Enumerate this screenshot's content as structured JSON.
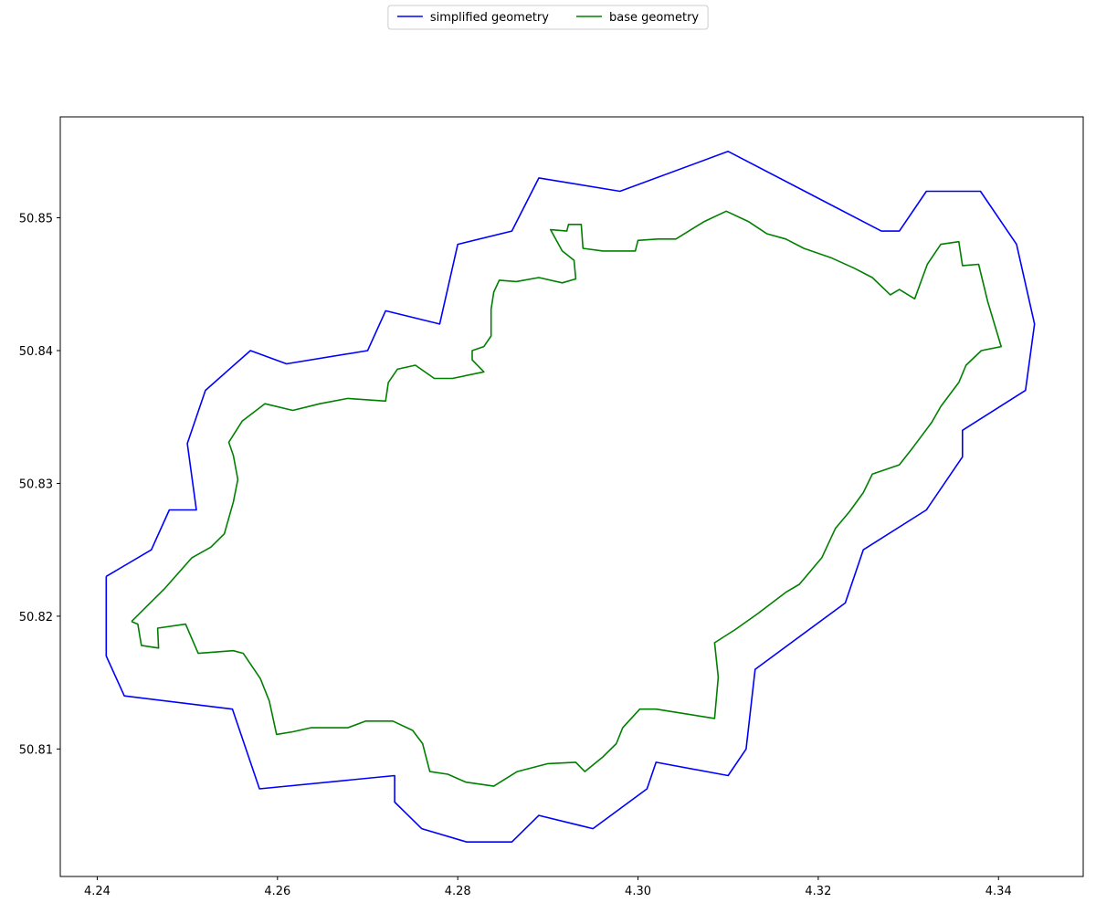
{
  "chart_data": {
    "type": "line",
    "legend": "upper center",
    "xlim": [
      4.2359,
      4.3494
    ],
    "ylim": [
      50.8004,
      50.8576
    ],
    "xticks": [
      4.24,
      4.26,
      4.28,
      {
        "value": 4.3,
        "label": "4.30"
      },
      4.32,
      4.34
    ],
    "yticks": [
      50.81,
      50.82,
      50.83,
      50.84,
      50.85
    ],
    "series": [
      {
        "name": "simplified geometry",
        "color": "#0000ff",
        "x": [
          4.241,
          4.246,
          4.248,
          4.251,
          4.25,
          4.252,
          4.257,
          4.261,
          4.27,
          4.272,
          4.278,
          4.28,
          4.286,
          4.289,
          4.298,
          4.31,
          4.327,
          4.329,
          4.332,
          4.338,
          4.342,
          4.344,
          4.343,
          4.336,
          4.336,
          4.332,
          4.325,
          4.323,
          4.313,
          4.312,
          4.31,
          4.302,
          4.301,
          4.295,
          4.289,
          4.286,
          4.281,
          4.276,
          4.273,
          4.273,
          4.258,
          4.255,
          4.243,
          4.241,
          4.241
        ],
        "values": [
          50.823,
          50.825,
          50.828,
          50.828,
          50.833,
          50.837,
          50.84,
          50.839,
          50.84,
          50.843,
          50.842,
          50.848,
          50.849,
          50.853,
          50.852,
          50.855,
          50.849,
          50.849,
          50.852,
          50.852,
          50.848,
          50.842,
          50.837,
          50.834,
          50.832,
          50.828,
          50.825,
          50.821,
          50.816,
          50.81,
          50.808,
          50.809,
          50.807,
          50.804,
          50.805,
          50.803,
          50.803,
          50.804,
          50.806,
          50.808,
          50.807,
          50.813,
          50.814,
          50.817,
          50.823
        ]
      },
      {
        "name": "base geometry",
        "color": "#008000",
        "x": [
          4.2438,
          4.2445,
          4.2449,
          4.2468,
          4.2467,
          4.2498,
          4.2512,
          4.2551,
          4.2562,
          4.2581,
          4.2591,
          4.2599,
          4.2617,
          4.2637,
          4.2678,
          4.2698,
          4.2728,
          4.275,
          4.2761,
          4.2769,
          4.2789,
          4.2809,
          4.284,
          4.2866,
          4.29,
          4.2931,
          4.2941,
          4.2961,
          4.2976,
          4.2983,
          4.3002,
          4.302,
          4.3085,
          4.3089,
          4.3085,
          4.3108,
          4.3133,
          4.3164,
          4.3179,
          4.3204,
          4.3219,
          4.3235,
          4.325,
          4.326,
          4.329,
          4.3305,
          4.3326,
          4.3336,
          4.3356,
          4.3364,
          4.3381,
          4.3403,
          4.3388,
          4.3378,
          4.336,
          4.3356,
          4.3336,
          4.3321,
          4.3307,
          4.329,
          4.328,
          4.326,
          4.324,
          4.3214,
          4.3184,
          4.3164,
          4.3143,
          4.3123,
          4.3098,
          4.3073,
          4.3042,
          4.3022,
          4.3,
          4.2997,
          4.2961,
          4.2939,
          4.2937,
          4.2923,
          4.2921,
          4.2903,
          4.2916,
          4.2929,
          4.2931,
          4.2916,
          4.289,
          4.2865,
          4.2846,
          4.284,
          4.2837,
          4.2837,
          4.2829,
          4.2816,
          4.2816,
          4.2829,
          4.2794,
          4.2774,
          4.2753,
          4.2733,
          4.2723,
          4.272,
          4.2678,
          4.2647,
          4.2617,
          4.2586,
          4.2561,
          4.2546,
          4.2551,
          4.2556,
          4.2551,
          4.2541,
          4.2526,
          4.2505,
          4.2475,
          4.2438
        ],
        "values": [
          50.8196,
          50.8194,
          50.8178,
          50.8176,
          50.8191,
          50.8194,
          50.8172,
          50.8174,
          50.8172,
          50.8153,
          50.8136,
          50.8111,
          50.8113,
          50.8116,
          50.8116,
          50.8121,
          50.8121,
          50.8114,
          50.8104,
          50.8083,
          50.8081,
          50.8075,
          50.8072,
          50.8083,
          50.8089,
          50.809,
          50.8083,
          50.8094,
          50.8104,
          50.8116,
          50.813,
          50.813,
          50.8123,
          50.8154,
          50.818,
          50.819,
          50.8202,
          50.8218,
          50.8224,
          50.8244,
          50.8266,
          50.8279,
          50.8293,
          50.8307,
          50.8314,
          50.8327,
          50.8346,
          50.8358,
          50.8376,
          50.8389,
          50.84,
          50.8403,
          50.8437,
          50.8465,
          50.8464,
          50.8482,
          50.848,
          50.8465,
          50.8439,
          50.8446,
          50.8442,
          50.8455,
          50.8462,
          50.847,
          50.8477,
          50.8484,
          50.8488,
          50.8497,
          50.8505,
          50.8497,
          50.8484,
          50.8484,
          50.8483,
          50.8475,
          50.8475,
          50.8477,
          50.8495,
          50.8495,
          50.849,
          50.8491,
          50.8475,
          50.8468,
          50.8454,
          50.8451,
          50.8455,
          50.8452,
          50.8453,
          50.8444,
          50.8431,
          50.8411,
          50.8403,
          50.84,
          50.8393,
          50.8384,
          50.8379,
          50.8379,
          50.8389,
          50.8386,
          50.8376,
          50.8362,
          50.8364,
          50.836,
          50.8355,
          50.836,
          50.8347,
          50.8331,
          50.8321,
          50.8303,
          50.8286,
          50.8262,
          50.8252,
          50.8244,
          50.8221,
          50.8196
        ]
      }
    ]
  }
}
